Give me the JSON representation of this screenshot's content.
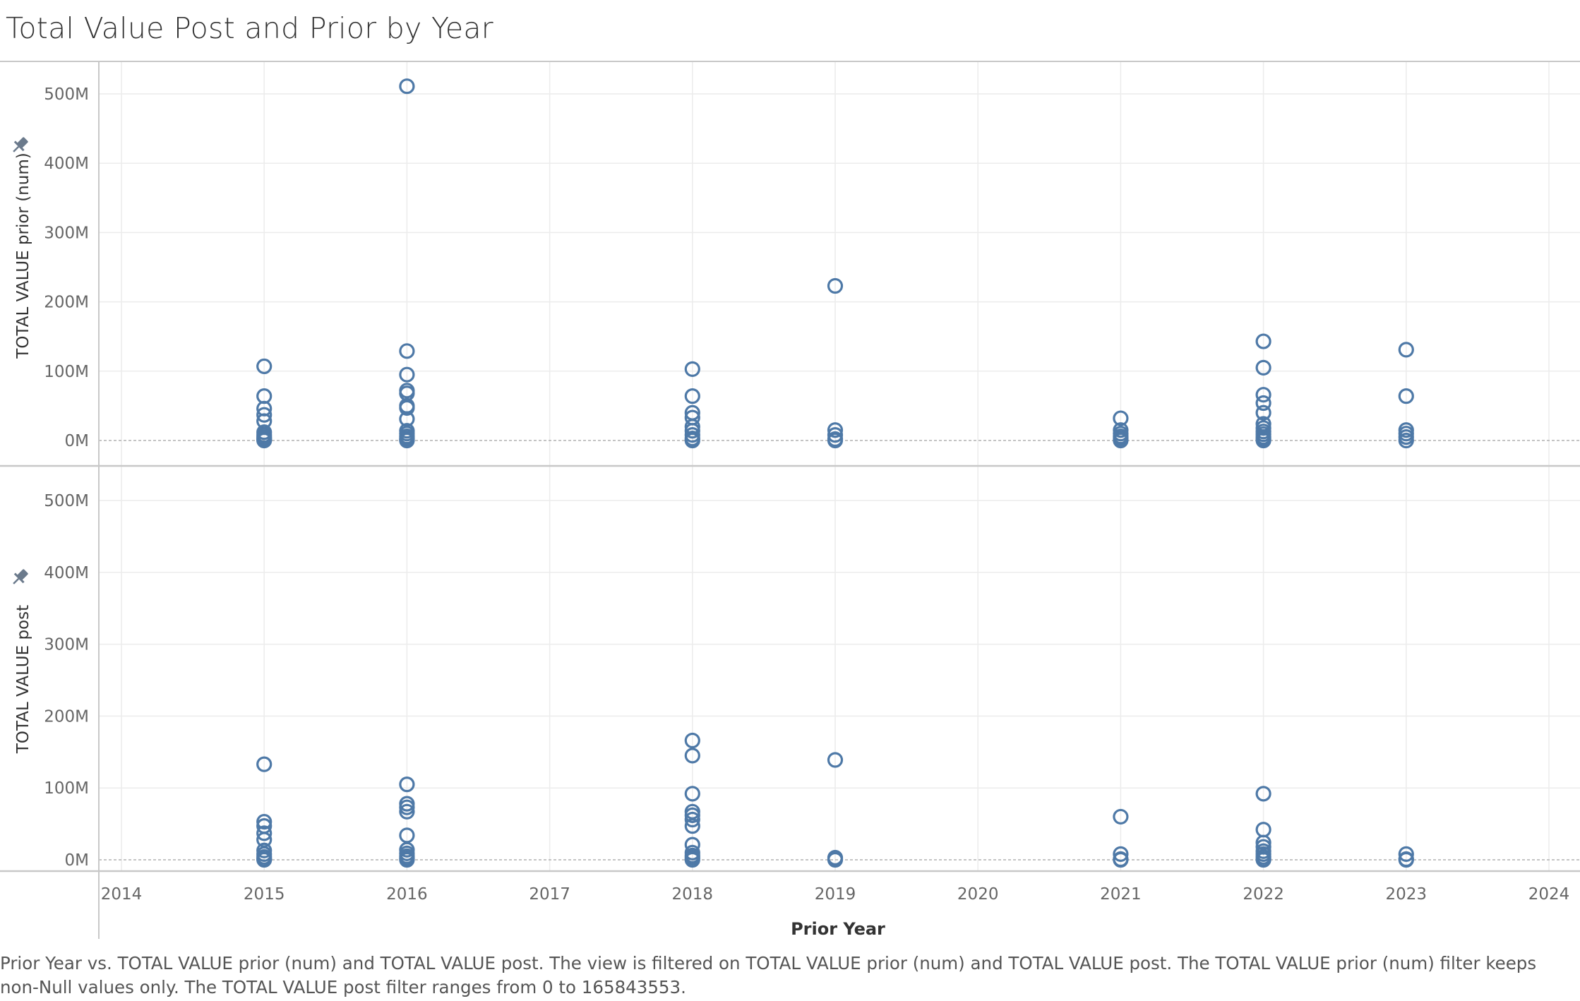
{
  "title": "Total Value Post and Prior by Year",
  "caption": "Prior Year vs. TOTAL VALUE prior (num) and TOTAL VALUE post. The view is filtered on TOTAL VALUE prior (num) and TOTAL VALUE post. The TOTAL VALUE prior (num) filter keeps non-Null values only. The TOTAL VALUE post filter ranges from 0 to 165843553.",
  "colors": {
    "marker": "#4e79a7",
    "grid": "#ececec",
    "border": "#c8c8c8",
    "zero_line": "#b0b0b0",
    "pin": "#6b7a8c"
  },
  "icons": {
    "pin": "pin-icon"
  },
  "chart_data": {
    "type": "scatter",
    "marker": "open-circle",
    "x_axis": {
      "label": "Prior Year",
      "range": [
        2014,
        2024
      ],
      "ticks": [
        "2014",
        "2015",
        "2016",
        "2017",
        "2018",
        "2019",
        "2020",
        "2021",
        "2022",
        "2023",
        "2024"
      ]
    },
    "y_tick_labels": [
      "0M",
      "100M",
      "200M",
      "300M",
      "400M",
      "500M"
    ],
    "panes": [
      {
        "ylabel": "TOTAL VALUE prior (num)",
        "ylim": [
          -30,
          545
        ],
        "points": [
          {
            "x": 2015,
            "y": [
              107,
              64,
              46,
              37,
              28,
              12,
              8,
              5,
              3,
              1,
              0
            ]
          },
          {
            "x": 2016,
            "y": [
              511,
              129,
              95,
              72,
              68,
              50,
              47,
              31,
              14,
              10,
              6,
              3,
              1,
              0
            ]
          },
          {
            "x": 2018,
            "y": [
              103,
              64,
              40,
              33,
              20,
              14,
              8,
              3,
              0
            ]
          },
          {
            "x": 2019,
            "y": [
              223,
              15,
              8,
              2,
              0
            ]
          },
          {
            "x": 2021,
            "y": [
              32,
              15,
              10,
              6,
              3,
              0
            ]
          },
          {
            "x": 2022,
            "y": [
              143,
              105,
              66,
              54,
              40,
              24,
              18,
              13,
              9,
              5,
              2,
              0
            ]
          },
          {
            "x": 2023,
            "y": [
              131,
              64,
              15,
              10,
              5,
              0
            ]
          }
        ]
      },
      {
        "ylabel": "TOTAL VALUE post",
        "ylim": [
          -15,
          545
        ],
        "points": [
          {
            "x": 2015,
            "y": [
              133,
              53,
              47,
              37,
              28,
              13,
              8,
              4,
              1,
              0
            ]
          },
          {
            "x": 2016,
            "y": [
              105,
              78,
              73,
              67,
              34,
              14,
              9,
              5,
              2,
              0
            ]
          },
          {
            "x": 2018,
            "y": [
              166,
              145,
              92,
              67,
              62,
              56,
              47,
              21,
              10,
              6,
              3,
              0
            ]
          },
          {
            "x": 2019,
            "y": [
              139,
              3,
              1,
              0
            ]
          },
          {
            "x": 2021,
            "y": [
              60,
              8,
              1,
              0
            ]
          },
          {
            "x": 2022,
            "y": [
              92,
              42,
              24,
              18,
              12,
              8,
              4,
              1,
              0
            ]
          },
          {
            "x": 2023,
            "y": [
              8,
              1,
              0
            ]
          }
        ]
      }
    ]
  }
}
